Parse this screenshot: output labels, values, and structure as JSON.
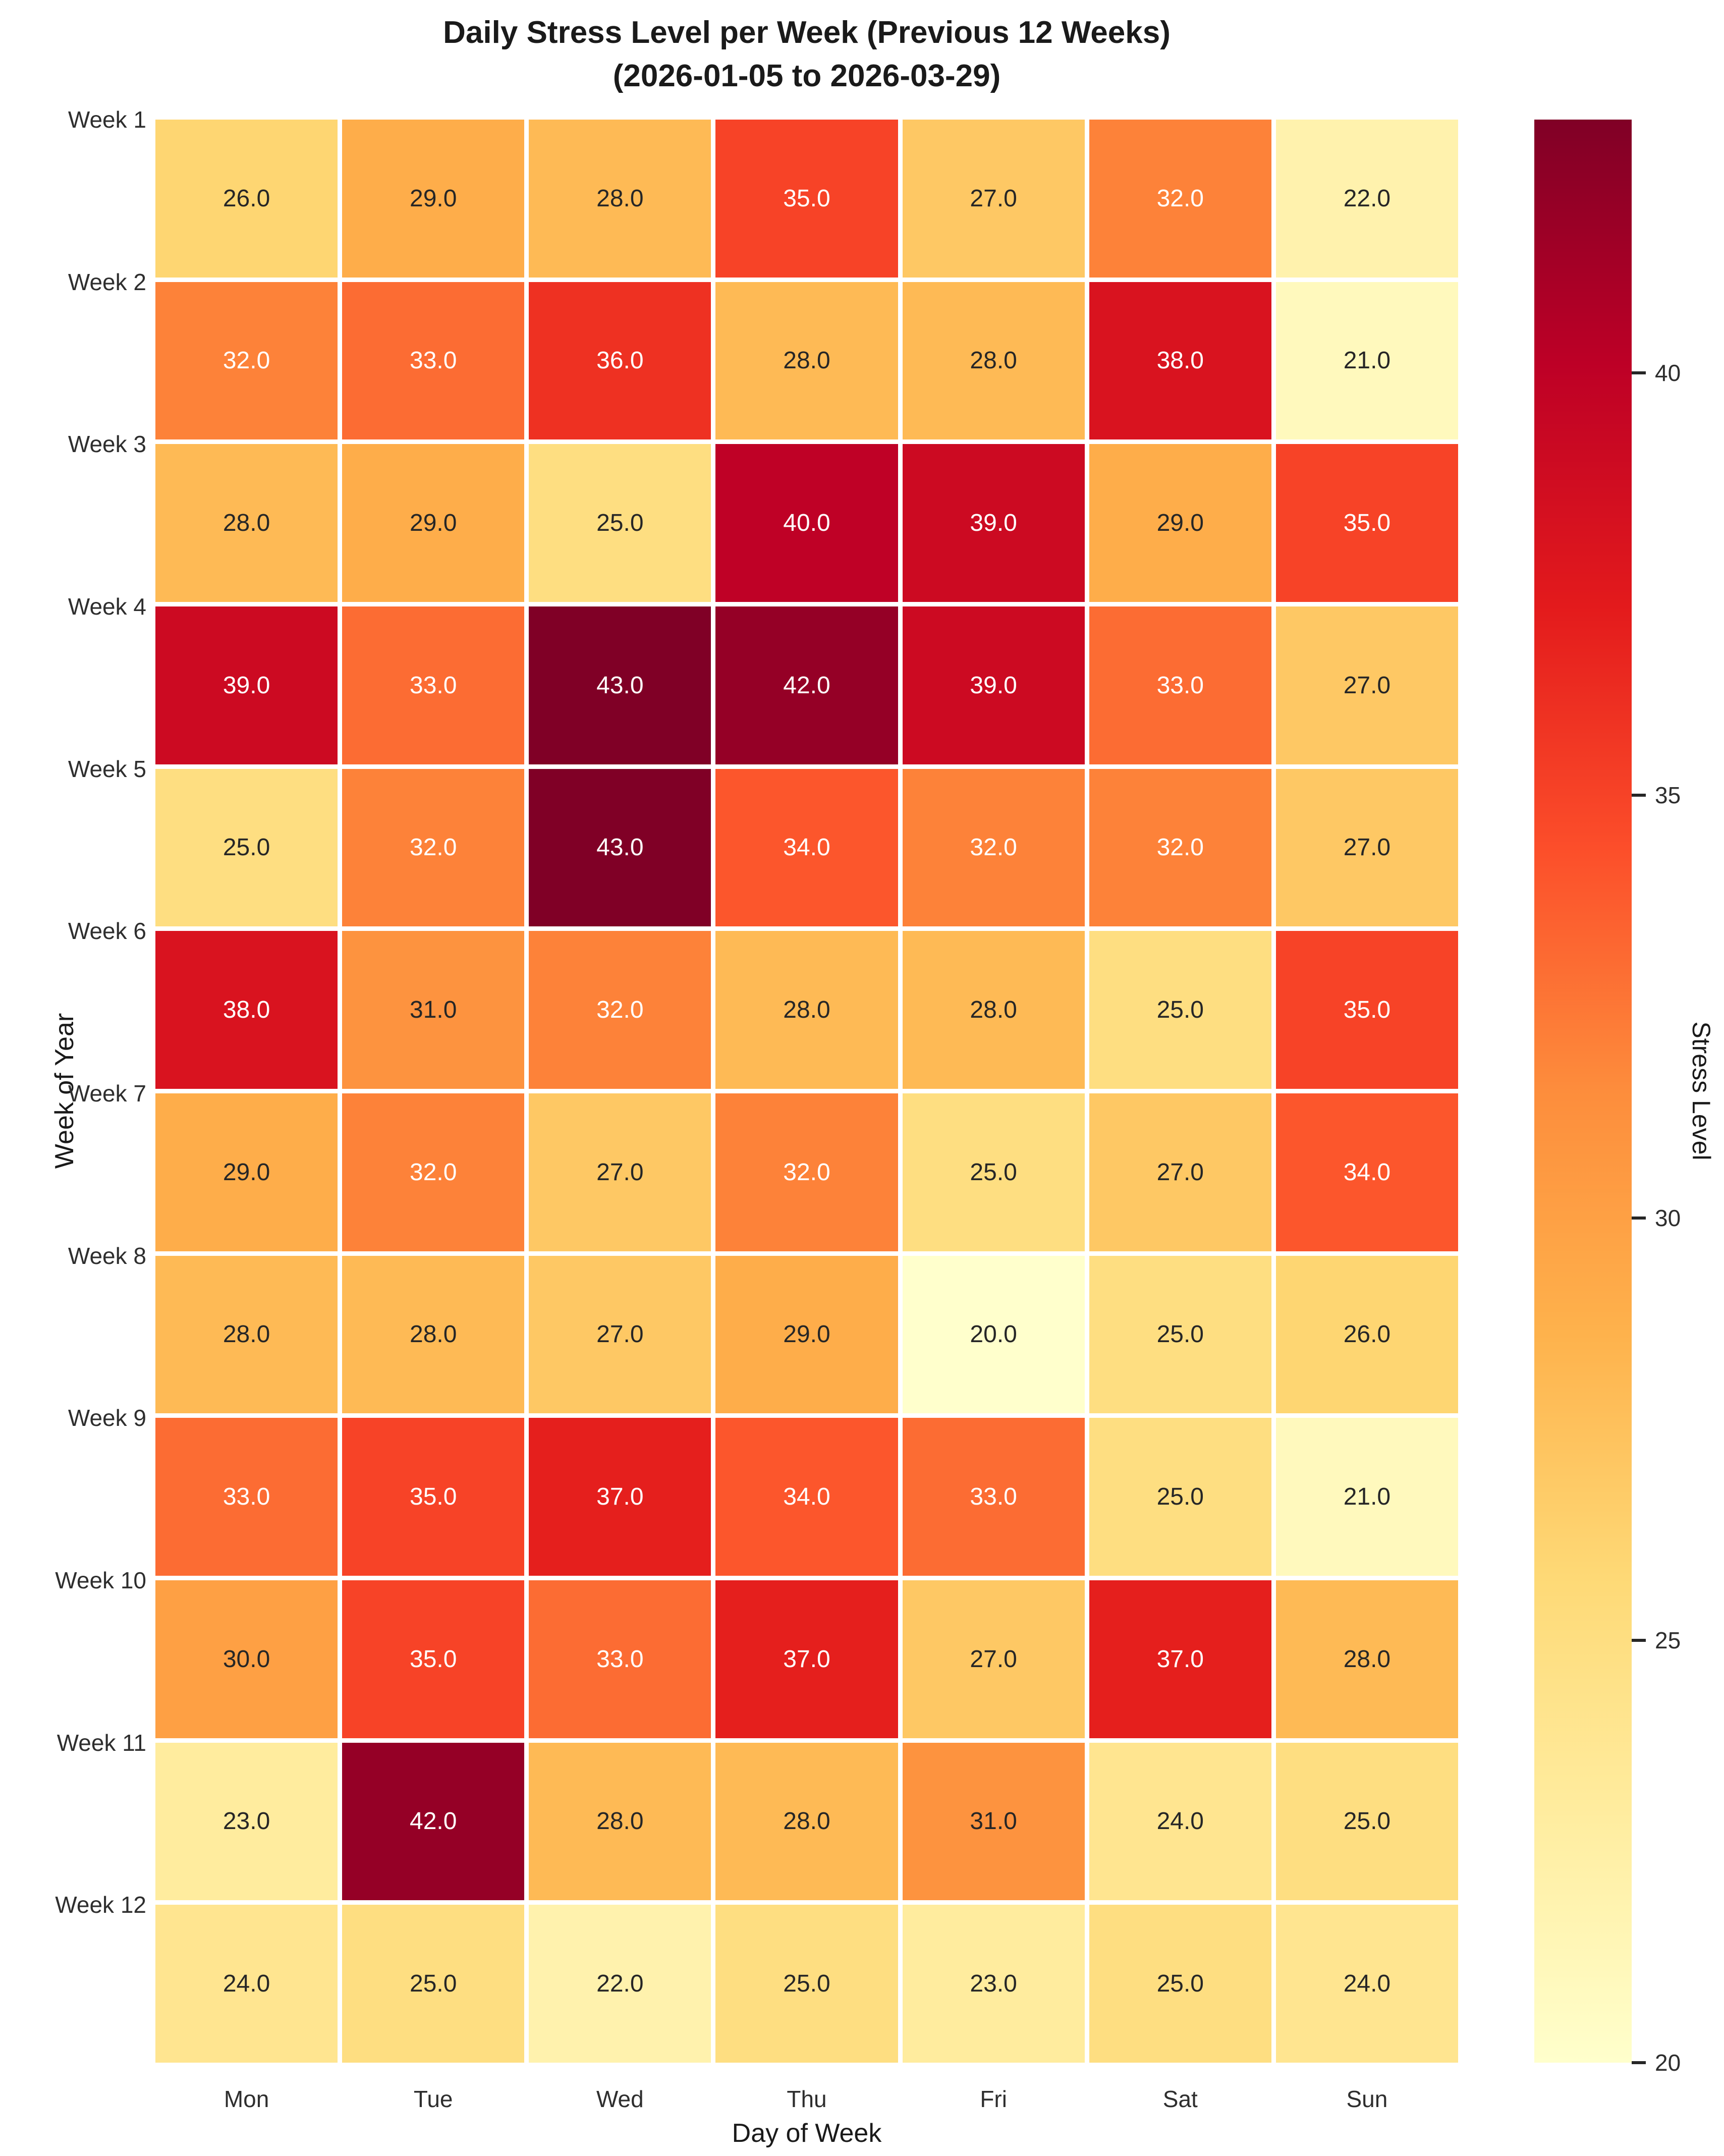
{
  "title": {
    "line1": "Daily Stress Level per Week (Previous 12 Weeks)",
    "line2": "(2026-01-05 to 2026-03-29)"
  },
  "chart_data": {
    "type": "heatmap",
    "title": "Daily Stress Level per Week (Previous 12 Weeks) (2026-01-05 to 2026-03-29)",
    "xlabel": "Day of Week",
    "ylabel": "Week of Year",
    "x_categories": [
      "Mon",
      "Tue",
      "Wed",
      "Thu",
      "Fri",
      "Sat",
      "Sun"
    ],
    "y_categories": [
      "Week 1",
      "Week 2",
      "Week 3",
      "Week 4",
      "Week 5",
      "Week 6",
      "Week 7",
      "Week 8",
      "Week 9",
      "Week 10",
      "Week 11",
      "Week 12"
    ],
    "values": [
      [
        26.0,
        29.0,
        28.0,
        35.0,
        27.0,
        32.0,
        22.0
      ],
      [
        32.0,
        33.0,
        36.0,
        28.0,
        28.0,
        38.0,
        21.0
      ],
      [
        28.0,
        29.0,
        25.0,
        40.0,
        39.0,
        29.0,
        35.0
      ],
      [
        39.0,
        33.0,
        43.0,
        42.0,
        39.0,
        33.0,
        27.0
      ],
      [
        25.0,
        32.0,
        43.0,
        34.0,
        32.0,
        32.0,
        27.0
      ],
      [
        38.0,
        31.0,
        32.0,
        28.0,
        28.0,
        25.0,
        35.0
      ],
      [
        29.0,
        32.0,
        27.0,
        32.0,
        25.0,
        27.0,
        34.0
      ],
      [
        28.0,
        28.0,
        27.0,
        29.0,
        20.0,
        25.0,
        26.0
      ],
      [
        33.0,
        35.0,
        37.0,
        34.0,
        33.0,
        25.0,
        21.0
      ],
      [
        30.0,
        35.0,
        33.0,
        37.0,
        27.0,
        37.0,
        28.0
      ],
      [
        23.0,
        42.0,
        28.0,
        28.0,
        31.0,
        24.0,
        25.0
      ],
      [
        24.0,
        25.0,
        22.0,
        25.0,
        23.0,
        25.0,
        24.0
      ]
    ],
    "annotation_decimals": 1,
    "grid_gap_color": "#ffffff",
    "annotation_dark_text_color": "#262626",
    "annotation_light_text_color": "#ffffff",
    "colorbar": {
      "label": "Stress Level",
      "ticks": [
        20,
        25,
        30,
        35,
        40
      ],
      "vmin": 20,
      "vmax": 43
    },
    "colormap": {
      "name": "YlOrRd",
      "stops": [
        {
          "t": 0.0,
          "color": "#ffffcc"
        },
        {
          "t": 0.125,
          "color": "#ffeda0"
        },
        {
          "t": 0.25,
          "color": "#fed976"
        },
        {
          "t": 0.375,
          "color": "#feb24c"
        },
        {
          "t": 0.5,
          "color": "#fd8d3c"
        },
        {
          "t": 0.625,
          "color": "#fc4e2a"
        },
        {
          "t": 0.75,
          "color": "#e31a1c"
        },
        {
          "t": 0.875,
          "color": "#bd0026"
        },
        {
          "t": 1.0,
          "color": "#800026"
        }
      ]
    }
  }
}
